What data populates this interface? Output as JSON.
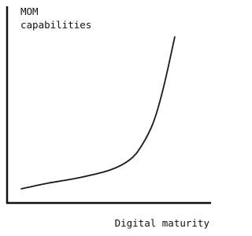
{
  "chart_data": {
    "type": "line",
    "y_label": "MOM capabilities",
    "x_label": "Digital maturity",
    "x": [
      7,
      19.7,
      35.1,
      50.6,
      60.2,
      66,
      71.8,
      76.8,
      82.2
    ],
    "values": [
      7.2,
      10,
      12.8,
      16.8,
      22,
      29.2,
      41.2,
      59.2,
      84.4
    ],
    "xlim": [
      0,
      100
    ],
    "ylim": [
      0,
      100
    ],
    "color": "#1a1a1a"
  }
}
